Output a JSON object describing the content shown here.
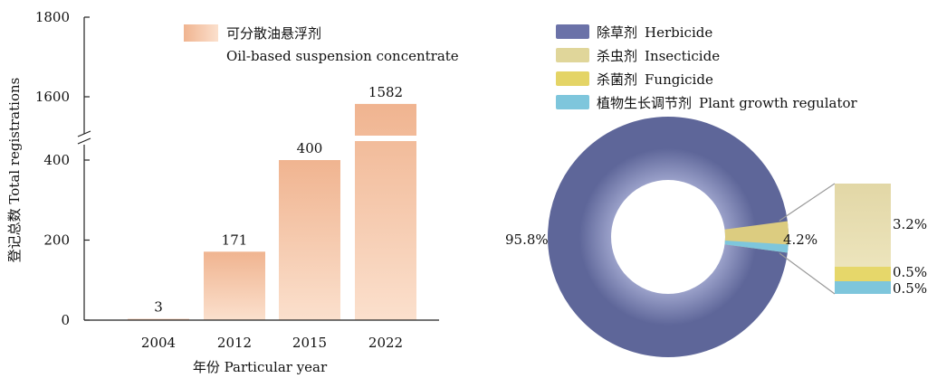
{
  "chart_data": [
    {
      "type": "bar",
      "categories": [
        "2004",
        "2012",
        "2015",
        "2022"
      ],
      "values": [
        3,
        171,
        400,
        1582
      ],
      "data_labels": [
        "3",
        "171",
        "400",
        "1582"
      ],
      "xlabel": "年份 Particular year",
      "ylabel": "登记总数 Total registrations",
      "y_ticks": [
        "0",
        "200",
        "400",
        "1600",
        "1800"
      ],
      "axis_break": {
        "from": 480,
        "to": 1520
      },
      "legend": {
        "label_zh": "可分散油悬浮剂",
        "label_en": "Oil-based suspension concentrate",
        "position": "top"
      },
      "colors": {
        "bar_top": "#f0b490",
        "bar_bottom": "#fbe0cd"
      }
    },
    {
      "type": "pie",
      "style": "donut-with-breakout-bar",
      "slices": [
        {
          "name_zh": "除草剂",
          "name_en": "Herbicide",
          "value": 95.8,
          "color": "#6b72a8"
        },
        {
          "name_zh": "杀虫剂",
          "name_en": "Insecticide",
          "value": 3.2,
          "color": "#e0d69a"
        },
        {
          "name_zh": "杀菌剂",
          "name_en": "Fungicide",
          "value": 0.5,
          "color": "#e4d466"
        },
        {
          "name_zh": "植物生长调节剂",
          "name_en": "Plant growth regulator",
          "value": 0.5,
          "color": "#7ec6dc"
        }
      ],
      "labels": {
        "main": "95.8%",
        "group": "4.2%",
        "insecticide": "3.2%",
        "fungicide": "0.5%",
        "regulator": "0.5%"
      },
      "legend_position": "top"
    }
  ]
}
